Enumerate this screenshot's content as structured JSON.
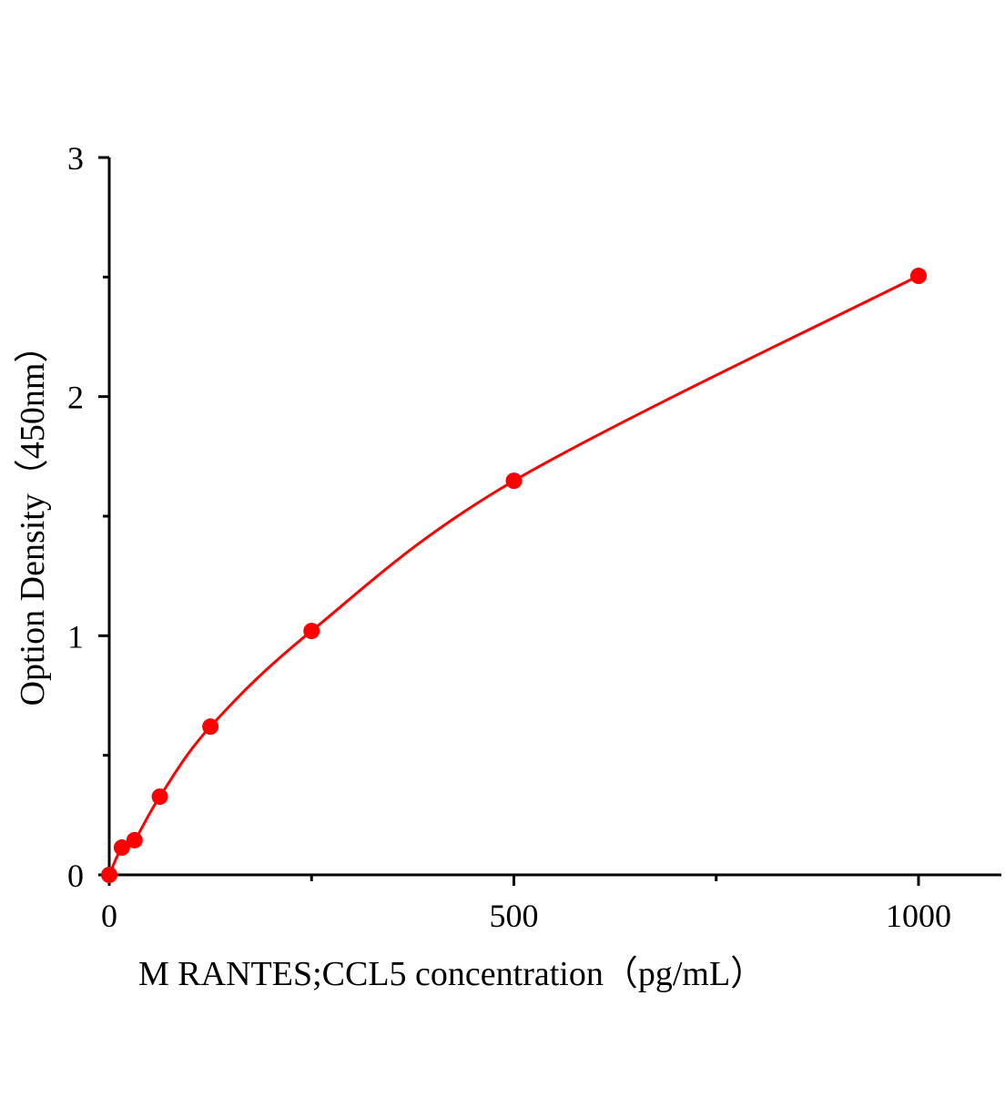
{
  "chart_data": {
    "type": "line",
    "title": "",
    "xlabel": "M  RANTES;CCL5 concentration（pg/mL）",
    "ylabel": "Option Density（450nm）",
    "xlim": [
      0,
      1100
    ],
    "ylim": [
      0,
      3
    ],
    "x_ticks": [
      0,
      500,
      1000
    ],
    "x_tick_labels": [
      "0",
      "500",
      "1000"
    ],
    "x_minor_ticks": [
      250,
      750
    ],
    "y_ticks": [
      0,
      1,
      2,
      3
    ],
    "y_tick_labels": [
      "0",
      "1",
      "2",
      "3"
    ],
    "y_minor_ticks": [
      0.5,
      1.5,
      2.5
    ],
    "grid": false,
    "series": [
      {
        "color": "#ff0000",
        "marker": "circle",
        "x": [
          0,
          15.6,
          31.25,
          62.5,
          125,
          250,
          500,
          1000
        ],
        "y": [
          0,
          0.114,
          0.145,
          0.327,
          0.62,
          1.02,
          1.648,
          2.505
        ]
      }
    ]
  }
}
